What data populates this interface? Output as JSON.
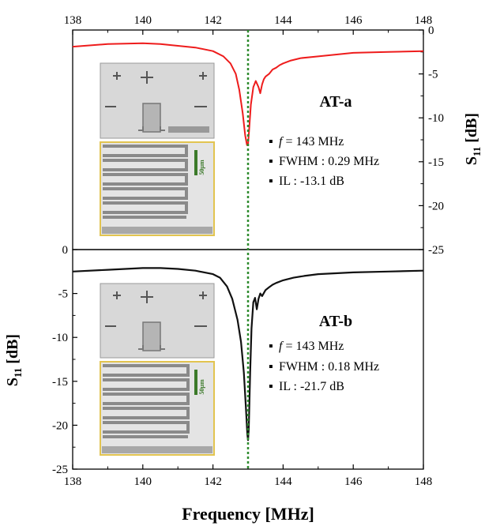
{
  "chart_data": [
    {
      "type": "line",
      "title": "AT-a",
      "xlabel": "Frequency [MHz]",
      "ylabel": "S11 [dB]",
      "ylabel_main": "S",
      "ylabel_sub": "11",
      "ylabel_unit": " [dB]",
      "xlim": [
        138,
        148
      ],
      "ylim": [
        -25,
        0
      ],
      "x_ticks": [
        "138",
        "140",
        "142",
        "144",
        "146",
        "148"
      ],
      "y_ticks": [
        "0",
        "-5",
        "-10",
        "-15",
        "-20",
        "-25"
      ],
      "marker_line_x": 143,
      "annotations": [
        {
          "bullet": "▪",
          "prefix": "",
          "italic": "f",
          "text": " = 143 MHz"
        },
        {
          "bullet": "▪",
          "prefix": "FWHM : 0.29 MHz",
          "italic": "",
          "text": ""
        },
        {
          "bullet": "▪",
          "prefix": "IL : -13.1 dB",
          "italic": "",
          "text": ""
        }
      ],
      "inset_scale_label": "50μm",
      "series": [
        {
          "color": "#ee1c1c",
          "x": [
            138.0,
            139.0,
            140.0,
            140.5,
            141.0,
            141.5,
            142.0,
            142.3,
            142.5,
            142.65,
            142.75,
            142.85,
            142.92,
            142.97,
            143.0,
            143.03,
            143.08,
            143.15,
            143.22,
            143.3,
            143.35,
            143.4,
            143.45,
            143.5,
            143.6,
            143.7,
            143.8,
            143.9,
            144.0,
            144.2,
            144.5,
            145.0,
            145.5,
            146.0,
            147.0,
            148.0
          ],
          "y": [
            -1.9,
            -1.6,
            -1.5,
            -1.6,
            -1.8,
            -2.0,
            -2.4,
            -3.0,
            -3.8,
            -5.0,
            -6.8,
            -9.5,
            -12.0,
            -13.1,
            -13.0,
            -11.5,
            -8.5,
            -6.5,
            -5.8,
            -6.5,
            -7.2,
            -6.2,
            -5.6,
            -5.3,
            -5.0,
            -4.5,
            -4.3,
            -4.0,
            -3.8,
            -3.5,
            -3.2,
            -3.0,
            -2.8,
            -2.6,
            -2.5,
            -2.4
          ]
        }
      ]
    },
    {
      "type": "line",
      "title": "AT-b",
      "xlabel": "Frequency [MHz]",
      "ylabel": "S11 [dB]",
      "ylabel_main": "S",
      "ylabel_sub": "11",
      "ylabel_unit": " [dB]",
      "xlim": [
        138,
        148
      ],
      "ylim": [
        -25,
        0
      ],
      "x_ticks": [
        "138",
        "140",
        "142",
        "144",
        "146",
        "148"
      ],
      "y_ticks": [
        "0",
        "-5",
        "-10",
        "-15",
        "-20",
        "-25"
      ],
      "marker_line_x": 143,
      "annotations": [
        {
          "bullet": "▪",
          "prefix": "",
          "italic": "f",
          "text": " = 143 MHz"
        },
        {
          "bullet": "▪",
          "prefix": "FWHM : 0.18 MHz",
          "italic": "",
          "text": ""
        },
        {
          "bullet": "▪",
          "prefix": "IL : -21.7 dB",
          "italic": "",
          "text": ""
        }
      ],
      "inset_scale_label": "50μm",
      "series": [
        {
          "color": "#111111",
          "x": [
            138.0,
            139.0,
            140.0,
            140.5,
            141.0,
            141.5,
            142.0,
            142.2,
            142.4,
            142.55,
            142.7,
            142.8,
            142.88,
            142.94,
            142.98,
            143.0,
            143.02,
            143.06,
            143.1,
            143.15,
            143.2,
            143.25,
            143.3,
            143.35,
            143.4,
            143.5,
            143.6,
            143.7,
            143.8,
            144.0,
            144.3,
            144.6,
            145.0,
            145.5,
            146.0,
            147.0,
            148.0
          ],
          "y": [
            -2.5,
            -2.3,
            -2.1,
            -2.1,
            -2.2,
            -2.4,
            -2.8,
            -3.2,
            -4.2,
            -5.6,
            -8.0,
            -10.5,
            -14.0,
            -18.0,
            -21.0,
            -21.7,
            -20.5,
            -14.0,
            -9.0,
            -6.0,
            -5.5,
            -6.8,
            -5.6,
            -5.0,
            -5.3,
            -4.6,
            -4.3,
            -4.0,
            -3.8,
            -3.5,
            -3.2,
            -3.0,
            -2.8,
            -2.7,
            -2.6,
            -2.5,
            -2.4
          ]
        }
      ]
    }
  ]
}
